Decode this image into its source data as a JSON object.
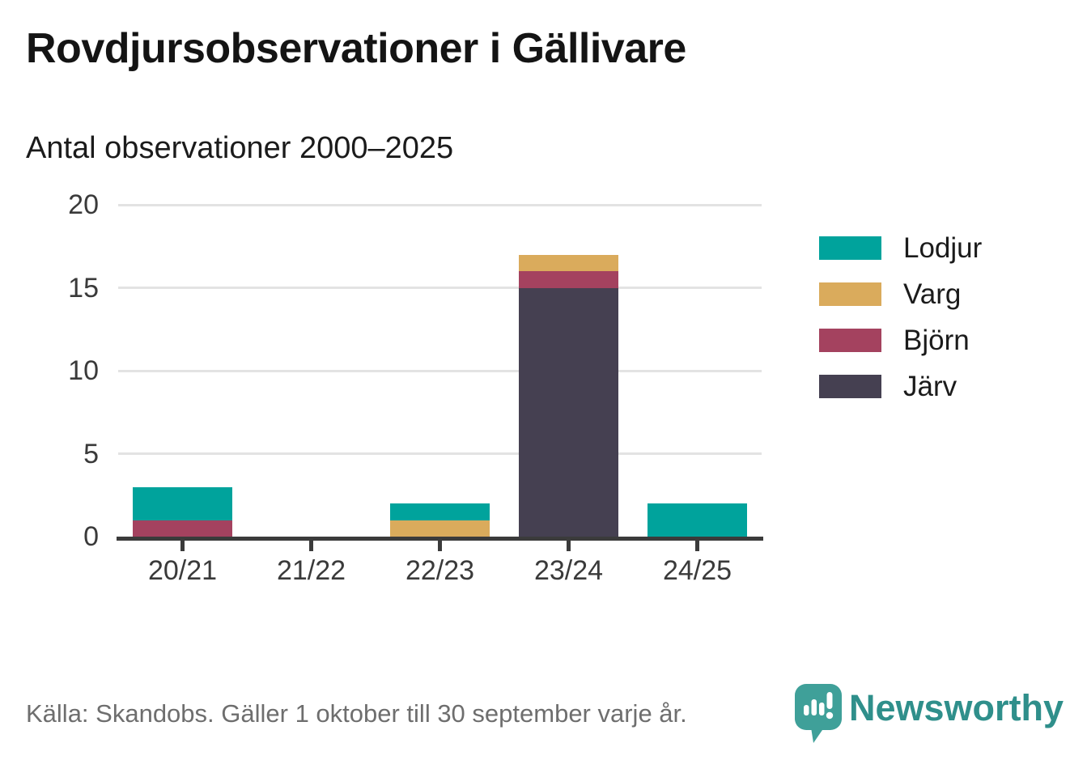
{
  "header": {
    "title": "Rovdjursobservationer i Gällivare",
    "subtitle": "Antal observationer 2000–2025"
  },
  "chart_data": {
    "type": "bar",
    "stacked": true,
    "title": "Rovdjursobservationer i Gällivare",
    "subtitle": "Antal observationer 2000–2025",
    "categories": [
      "20/21",
      "21/22",
      "22/23",
      "23/24",
      "24/25"
    ],
    "series": [
      {
        "name": "Lodjur",
        "color": "#00a39c",
        "values": [
          2,
          0,
          1,
          0,
          2
        ]
      },
      {
        "name": "Varg",
        "color": "#daab5c",
        "values": [
          0,
          0,
          1,
          1,
          0
        ]
      },
      {
        "name": "Björn",
        "color": "#a4425f",
        "values": [
          1,
          0,
          0,
          1,
          0
        ]
      },
      {
        "name": "Järv",
        "color": "#454051",
        "values": [
          0,
          0,
          0,
          15,
          0
        ]
      }
    ],
    "stack_order_bottom_to_top": [
      "Järv",
      "Björn",
      "Varg",
      "Lodjur"
    ],
    "totals": [
      3,
      0,
      2,
      17,
      2
    ],
    "ylim": [
      0,
      20
    ],
    "yticks": [
      0,
      5,
      10,
      15,
      20
    ],
    "grid": "horizontal",
    "legend_position": "right"
  },
  "footer": {
    "source": "Källa: Skandobs. Gäller 1 oktober till 30 september varje år.",
    "brand": "Newsworthy"
  },
  "style": {
    "grid_color": "#e3e3e3",
    "axis_color": "#3b3b3b",
    "tick_label_color": "#3a3a3a",
    "footer_color": "#6e6e6e",
    "logo_bubble_color": "#3fa099",
    "wordmark_color": "#2f8f8b"
  },
  "icons": {
    "logo": "newsworthy-speech-bubble-barchart-icon"
  }
}
